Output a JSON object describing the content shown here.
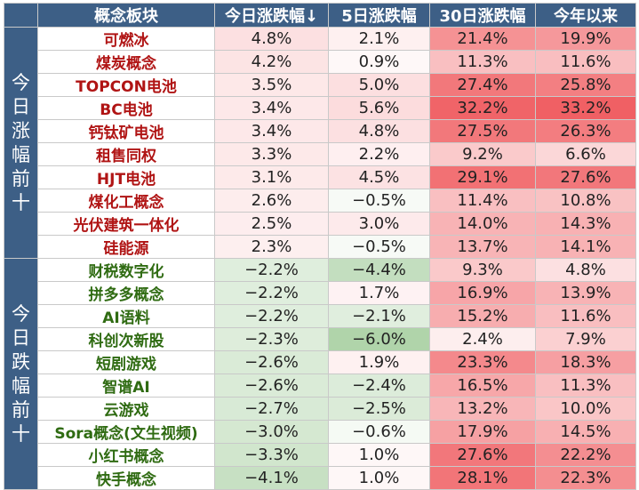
{
  "headers": [
    "概念板块",
    "今日涨跌幅↓",
    "5日涨跌幅",
    "30日涨跌幅",
    "今年以来"
  ],
  "groups": [
    {
      "label": "今日涨幅前十",
      "name_color": "#b01414",
      "rows": [
        {
          "name": "可燃冰",
          "values": [
            "4.8%",
            "2.1%",
            "21.4%",
            "19.9%"
          ]
        },
        {
          "name": "煤炭概念",
          "values": [
            "4.2%",
            "0.9%",
            "11.3%",
            "11.6%"
          ]
        },
        {
          "name": "TOPCON电池",
          "values": [
            "3.5%",
            "5.0%",
            "27.4%",
            "25.8%"
          ]
        },
        {
          "name": "BC电池",
          "values": [
            "3.4%",
            "5.6%",
            "32.2%",
            "33.2%"
          ]
        },
        {
          "name": "钙钛矿电池",
          "values": [
            "3.4%",
            "4.8%",
            "27.5%",
            "26.3%"
          ]
        },
        {
          "name": "租售同权",
          "values": [
            "3.3%",
            "2.2%",
            "9.2%",
            "6.6%"
          ]
        },
        {
          "name": "HJT电池",
          "values": [
            "3.1%",
            "4.5%",
            "29.1%",
            "27.6%"
          ]
        },
        {
          "name": "煤化工概念",
          "values": [
            "2.6%",
            "−0.5%",
            "11.4%",
            "10.8%"
          ]
        },
        {
          "name": "光伏建筑一体化",
          "values": [
            "2.5%",
            "3.0%",
            "14.0%",
            "14.3%"
          ]
        },
        {
          "name": "硅能源",
          "values": [
            "2.3%",
            "−0.5%",
            "13.7%",
            "14.1%"
          ]
        }
      ]
    },
    {
      "label": "今日跌幅前十",
      "name_color": "#2f6b12",
      "rows": [
        {
          "name": "财税数字化",
          "values": [
            "−2.2%",
            "−4.4%",
            "9.3%",
            "4.8%"
          ]
        },
        {
          "name": "拼多多概念",
          "values": [
            "−2.2%",
            "1.7%",
            "16.9%",
            "13.9%"
          ]
        },
        {
          "name": "AI语料",
          "values": [
            "−2.2%",
            "−2.1%",
            "15.2%",
            "11.6%"
          ]
        },
        {
          "name": "科创次新股",
          "values": [
            "−2.3%",
            "−6.0%",
            "2.4%",
            "7.9%"
          ]
        },
        {
          "name": "短剧游戏",
          "values": [
            "−2.6%",
            "1.9%",
            "23.3%",
            "18.3%"
          ]
        },
        {
          "name": "智谱AI",
          "values": [
            "−2.6%",
            "−2.4%",
            "16.5%",
            "11.3%"
          ]
        },
        {
          "name": "云游戏",
          "values": [
            "−2.7%",
            "−2.5%",
            "13.2%",
            "10.0%"
          ]
        },
        {
          "name": "Sora概念(文生视频)",
          "values": [
            "−3.0%",
            "−0.6%",
            "17.9%",
            "14.5%"
          ]
        },
        {
          "name": "小红书概念",
          "values": [
            "−3.3%",
            "1.0%",
            "27.6%",
            "22.2%"
          ]
        },
        {
          "name": "快手概念",
          "values": [
            "−4.1%",
            "1.0%",
            "28.1%",
            "22.3%"
          ]
        }
      ]
    }
  ]
}
